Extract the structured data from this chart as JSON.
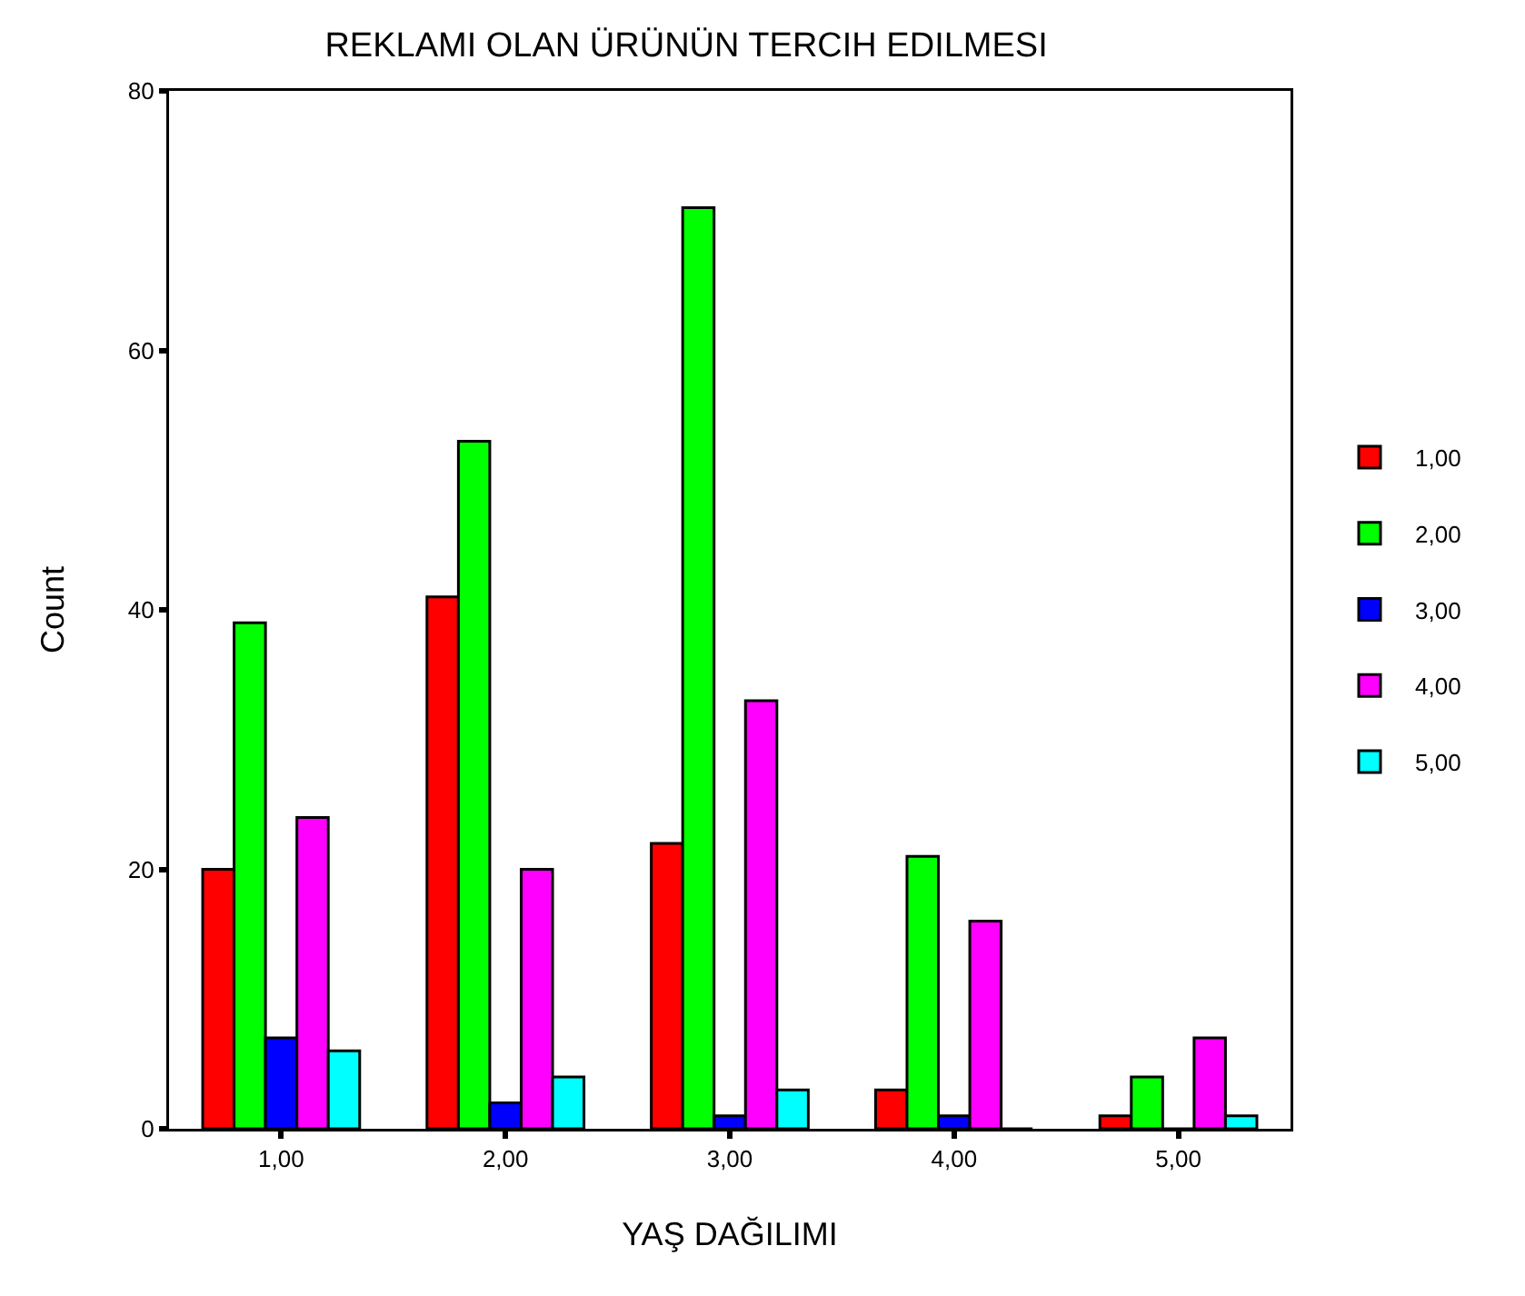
{
  "chart_data": {
    "type": "bar",
    "title": "REKLAMI OLAN ÜRÜNÜN TERCIH EDILMESI",
    "xlabel": "YAŞ DAĞILIMI",
    "ylabel": "Count",
    "categories": [
      "1,00",
      "2,00",
      "3,00",
      "4,00",
      "5,00"
    ],
    "series": [
      {
        "name": "1,00",
        "color": "#ff0000",
        "values": [
          20,
          41,
          22,
          3,
          1
        ]
      },
      {
        "name": "2,00",
        "color": "#00ff00",
        "values": [
          39,
          53,
          71,
          21,
          4
        ]
      },
      {
        "name": "3,00",
        "color": "#0000ff",
        "values": [
          7,
          2,
          1,
          1,
          0
        ]
      },
      {
        "name": "4,00",
        "color": "#ff00ff",
        "values": [
          24,
          20,
          33,
          16,
          7
        ]
      },
      {
        "name": "5,00",
        "color": "#00ffff",
        "values": [
          6,
          4,
          3,
          0,
          1
        ]
      }
    ],
    "ylim": [
      0,
      80
    ],
    "yticks": [
      0,
      20,
      40,
      60,
      80
    ],
    "grid": false,
    "legend": "right"
  }
}
